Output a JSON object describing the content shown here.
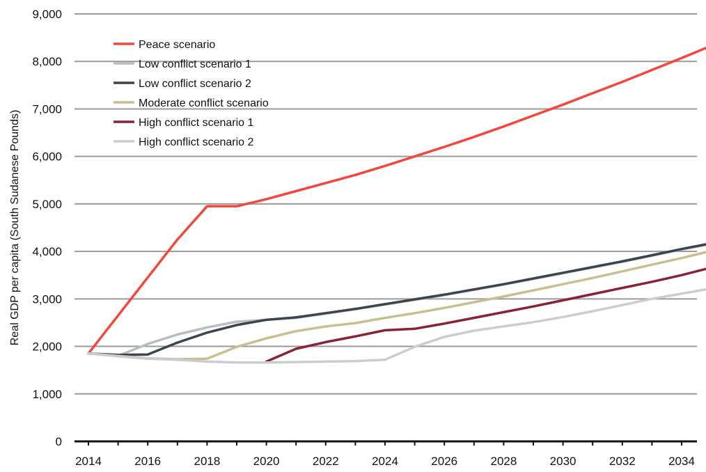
{
  "chart_data": {
    "type": "line",
    "ylabel": "Real GDP per capita (South Sudanese Pounds)",
    "xlabel": "",
    "x_ticks": [
      "2014",
      "2016",
      "2018",
      "2020",
      "2022",
      "2024",
      "2026",
      "2028",
      "2030",
      "2032",
      "2034"
    ],
    "y_ticks": [
      "0",
      "1,000",
      "2,000",
      "3,000",
      "4,000",
      "5,000",
      "6,000",
      "7,000",
      "8,000",
      "9,000"
    ],
    "xlim": [
      2014,
      2035
    ],
    "ylim": [
      0,
      9000
    ],
    "grid": "horizontal",
    "legend_position": "top-left",
    "series": [
      {
        "name": "Peace scenario",
        "color": "#f2473a",
        "points": [
          [
            2014,
            1850
          ],
          [
            2015,
            2650
          ],
          [
            2016,
            3450
          ],
          [
            2017,
            4250
          ],
          [
            2018,
            4950
          ],
          [
            2019,
            4950
          ],
          [
            2020,
            5100
          ],
          [
            2021,
            5270
          ],
          [
            2022,
            5440
          ],
          [
            2023,
            5610
          ],
          [
            2024,
            5800
          ],
          [
            2025,
            6000
          ],
          [
            2026,
            6200
          ],
          [
            2027,
            6410
          ],
          [
            2028,
            6630
          ],
          [
            2029,
            6860
          ],
          [
            2030,
            7090
          ],
          [
            2031,
            7330
          ],
          [
            2032,
            7570
          ],
          [
            2033,
            7820
          ],
          [
            2034,
            8070
          ],
          [
            2035,
            8330
          ]
        ]
      },
      {
        "name": "Low conflict scenario 1",
        "color": "#b9bdc2",
        "points": [
          [
            2014,
            1850
          ],
          [
            2015,
            1800
          ],
          [
            2016,
            2050
          ],
          [
            2017,
            2250
          ],
          [
            2018,
            2400
          ],
          [
            2019,
            2520
          ],
          [
            2020,
            2560
          ],
          [
            2021,
            2600
          ],
          [
            2022,
            2690
          ],
          [
            2023,
            2780
          ],
          [
            2024,
            2880
          ],
          [
            2025,
            2980
          ],
          [
            2026,
            3080
          ],
          [
            2027,
            3190
          ],
          [
            2028,
            3300
          ],
          [
            2029,
            3420
          ],
          [
            2030,
            3540
          ],
          [
            2031,
            3660
          ],
          [
            2032,
            3780
          ],
          [
            2033,
            3910
          ],
          [
            2034,
            4040
          ],
          [
            2035,
            4160
          ]
        ]
      },
      {
        "name": "Low conflict scenario 2",
        "color": "#3d444d",
        "points": [
          [
            2014,
            1850
          ],
          [
            2015,
            1820
          ],
          [
            2016,
            1830
          ],
          [
            2017,
            2080
          ],
          [
            2018,
            2290
          ],
          [
            2019,
            2450
          ],
          [
            2020,
            2560
          ],
          [
            2021,
            2610
          ],
          [
            2022,
            2700
          ],
          [
            2023,
            2790
          ],
          [
            2024,
            2890
          ],
          [
            2025,
            2990
          ],
          [
            2026,
            3090
          ],
          [
            2027,
            3200
          ],
          [
            2028,
            3310
          ],
          [
            2029,
            3430
          ],
          [
            2030,
            3550
          ],
          [
            2031,
            3670
          ],
          [
            2032,
            3790
          ],
          [
            2033,
            3920
          ],
          [
            2034,
            4050
          ],
          [
            2035,
            4170
          ]
        ]
      },
      {
        "name": "Moderate conflict scenario",
        "color": "#c9be8e",
        "points": [
          [
            2014,
            1850
          ],
          [
            2015,
            1800
          ],
          [
            2016,
            1750
          ],
          [
            2017,
            1730
          ],
          [
            2018,
            1740
          ],
          [
            2019,
            1990
          ],
          [
            2020,
            2170
          ],
          [
            2021,
            2320
          ],
          [
            2022,
            2420
          ],
          [
            2023,
            2490
          ],
          [
            2024,
            2600
          ],
          [
            2025,
            2700
          ],
          [
            2026,
            2810
          ],
          [
            2027,
            2930
          ],
          [
            2028,
            3050
          ],
          [
            2029,
            3180
          ],
          [
            2030,
            3310
          ],
          [
            2031,
            3440
          ],
          [
            2032,
            3580
          ],
          [
            2033,
            3720
          ],
          [
            2034,
            3860
          ],
          [
            2035,
            4010
          ]
        ]
      },
      {
        "name": "High conflict scenario 1",
        "color": "#8a2235",
        "points": [
          [
            2020,
            1680
          ],
          [
            2021,
            1950
          ],
          [
            2022,
            2090
          ],
          [
            2023,
            2210
          ],
          [
            2024,
            2340
          ],
          [
            2025,
            2370
          ],
          [
            2026,
            2480
          ],
          [
            2027,
            2600
          ],
          [
            2028,
            2720
          ],
          [
            2029,
            2840
          ],
          [
            2030,
            2970
          ],
          [
            2031,
            3100
          ],
          [
            2032,
            3230
          ],
          [
            2033,
            3360
          ],
          [
            2034,
            3500
          ],
          [
            2035,
            3660
          ]
        ]
      },
      {
        "name": "High conflict scenario 2",
        "color": "#c9cdd2",
        "points": [
          [
            2014,
            1850
          ],
          [
            2015,
            1790
          ],
          [
            2016,
            1740
          ],
          [
            2017,
            1720
          ],
          [
            2018,
            1680
          ],
          [
            2019,
            1660
          ],
          [
            2020,
            1660
          ],
          [
            2021,
            1670
          ],
          [
            2022,
            1680
          ],
          [
            2023,
            1690
          ],
          [
            2024,
            1720
          ],
          [
            2025,
            1990
          ],
          [
            2026,
            2200
          ],
          [
            2027,
            2330
          ],
          [
            2028,
            2420
          ],
          [
            2029,
            2510
          ],
          [
            2030,
            2620
          ],
          [
            2031,
            2740
          ],
          [
            2032,
            2870
          ],
          [
            2033,
            3000
          ],
          [
            2034,
            3110
          ],
          [
            2035,
            3220
          ]
        ]
      }
    ]
  }
}
